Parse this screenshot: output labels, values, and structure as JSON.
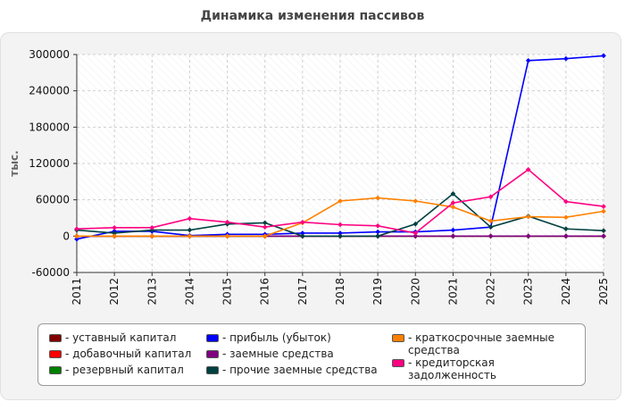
{
  "chart_data": {
    "type": "line",
    "title": "Динамика изменения пассивов",
    "ylabel": "тыс.",
    "xlabel": "",
    "x": [
      "2011",
      "2012",
      "2013",
      "2014",
      "2015",
      "2016",
      "2017",
      "2018",
      "2019",
      "2020",
      "2021",
      "2022",
      "2023",
      "2024",
      "2025"
    ],
    "ylim": [
      -60000,
      300000
    ],
    "yticks": [
      -60000,
      0,
      60000,
      120000,
      180000,
      240000,
      300000
    ],
    "ytick_labels": [
      "-60000",
      "0",
      "60000",
      "120000",
      "180000",
      "240000",
      "300000"
    ],
    "grid": true,
    "legend_position": "bottom",
    "series": [
      {
        "name": "- уставный капитал",
        "color": "#800000",
        "values": [
          0,
          0,
          0,
          0,
          0,
          0,
          0,
          0,
          0,
          0,
          0,
          0,
          0,
          0,
          0
        ]
      },
      {
        "name": "- добавочный капитал",
        "color": "#ff0000",
        "values": [
          0,
          0,
          0,
          0,
          0,
          0,
          0,
          0,
          0,
          0,
          0,
          0,
          0,
          0,
          0
        ]
      },
      {
        "name": "- резервный капитал",
        "color": "#008000",
        "values": [
          0,
          0,
          0,
          0,
          0,
          0,
          0,
          0,
          0,
          0,
          0,
          0,
          0,
          0,
          0
        ]
      },
      {
        "name": "- прибыль (убыток)",
        "color": "#0000ff",
        "values": [
          -5000,
          8000,
          8000,
          1000,
          3000,
          3000,
          5000,
          5000,
          7000,
          7000,
          10000,
          15000,
          290000,
          293000,
          298000
        ]
      },
      {
        "name": "- заемные средства",
        "color": "#800080",
        "values": [
          0,
          0,
          0,
          0,
          0,
          0,
          0,
          0,
          0,
          0,
          0,
          0,
          0,
          0,
          0
        ]
      },
      {
        "name": "- прочие заемные средства",
        "color": "#004040",
        "values": [
          10000,
          5000,
          10000,
          10000,
          20000,
          22000,
          0,
          0,
          0,
          20000,
          70000,
          15000,
          33000,
          12000,
          9000
        ]
      },
      {
        "name": "- краткосрочные заемные средства",
        "color": "#ff8000",
        "values": [
          0,
          0,
          0,
          0,
          0,
          0,
          22000,
          58000,
          63000,
          58000,
          48000,
          25000,
          32000,
          31000,
          41000
        ]
      },
      {
        "name": "- кредиторская задолженность",
        "color": "#ff0080",
        "values": [
          12000,
          14000,
          14000,
          29000,
          23000,
          15000,
          23000,
          19000,
          17000,
          5000,
          55000,
          65000,
          110000,
          57000,
          49000
        ]
      }
    ]
  }
}
